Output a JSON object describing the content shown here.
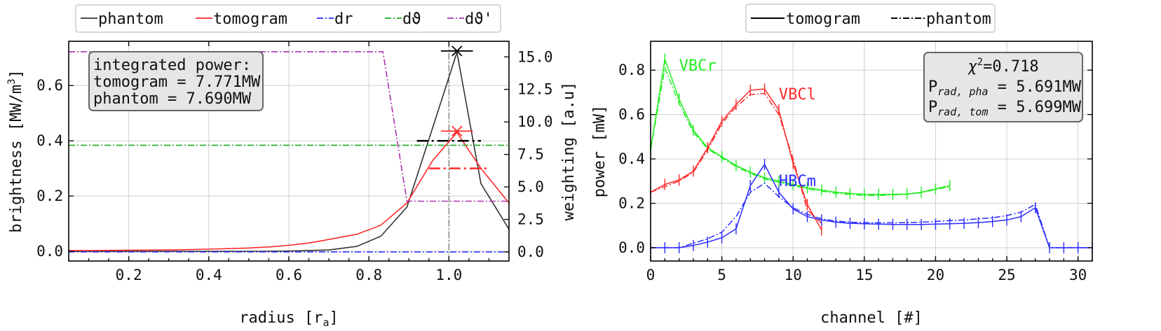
{
  "chart_data": [
    {
      "type": "line",
      "xlabel": "radius [r",
      "xlabel_sub": "a",
      "xlabel_end": "]",
      "ylabel": "brightness [MW/m",
      "ylabel_sup": "3",
      "ylabel_end": "]",
      "y2label": "weighting [a.u]",
      "xlim": [
        0.05,
        1.15
      ],
      "ylim": [
        -0.035,
        0.76
      ],
      "y2lim": [
        -0.7,
        16.2
      ],
      "xticks": [
        "0.2",
        "0.4",
        "0.6",
        "0.8",
        "1.0"
      ],
      "xtick_values": [
        0.2,
        0.4,
        0.6,
        0.8,
        1.0
      ],
      "yticks": [
        "0.0",
        "0.2",
        "0.4",
        "0.6"
      ],
      "ytick_values": [
        0.0,
        0.2,
        0.4,
        0.6
      ],
      "y2ticks": [
        "0.0",
        "2.5",
        "5.0",
        "7.5",
        "10.0",
        "12.5",
        "15.0"
      ],
      "y2tick_values": [
        0.0,
        2.5,
        5.0,
        7.5,
        10.0,
        12.5,
        15.0
      ],
      "grid": true,
      "legend": {
        "placement": "top, outside",
        "entries": [
          {
            "label": "phantom",
            "color": "#333333",
            "dash": "solid"
          },
          {
            "label": "tomogram",
            "color": "#ff2a2a",
            "dash": "solid"
          },
          {
            "label": "dr",
            "color": "#2a2aff",
            "dash": "dashdot"
          },
          {
            "label": "dϑ",
            "color": "#22aa22",
            "dash": "dashdot"
          },
          {
            "label": "dϑ'",
            "color": "#aa33aa",
            "dash": "dashdot"
          }
        ]
      },
      "annotation": {
        "lines": [
          "integrated power:",
          "tomogram = 7.771MW",
          "phantom = 7.690MW"
        ]
      },
      "series": [
        {
          "name": "phantom",
          "color": "#333333",
          "dash": "solid",
          "axis": "left",
          "x": [
            0.05,
            0.1,
            0.2,
            0.3,
            0.4,
            0.5,
            0.6,
            0.7,
            0.77,
            0.83,
            0.895,
            0.96,
            1.02,
            1.08,
            1.15
          ],
          "y": [
            0.0,
            0.0,
            0.0,
            0.0,
            0.0,
            0.0,
            0.001,
            0.005,
            0.018,
            0.055,
            0.16,
            0.45,
            0.72,
            0.245,
            0.08
          ]
        },
        {
          "name": "tomogram",
          "color": "#ff2a2a",
          "dash": "solid",
          "axis": "left",
          "x": [
            0.05,
            0.1,
            0.2,
            0.3,
            0.4,
            0.5,
            0.55,
            0.6,
            0.65,
            0.7,
            0.77,
            0.83,
            0.895,
            0.96,
            1.02,
            1.08,
            1.15
          ],
          "y": [
            0.003,
            0.003,
            0.004,
            0.005,
            0.008,
            0.012,
            0.016,
            0.022,
            0.03,
            0.043,
            0.062,
            0.095,
            0.175,
            0.33,
            0.43,
            0.3,
            0.175
          ]
        },
        {
          "name": "dr",
          "color": "#2a2aff",
          "dash": "dashdot",
          "axis": "right",
          "x": [
            0.05,
            1.15
          ],
          "y": [
            0.0,
            0.0
          ]
        },
        {
          "name": "dϑ",
          "color": "#22aa22",
          "dash": "dashdot",
          "axis": "right",
          "x": [
            0.05,
            1.15
          ],
          "y": [
            8.2,
            8.2
          ]
        },
        {
          "name": "dϑ'",
          "color": "#aa33aa",
          "dash": "dashdot",
          "axis": "right",
          "x": [
            0.05,
            0.835,
            0.895,
            1.15
          ],
          "y": [
            15.4,
            15.4,
            3.9,
            3.9
          ]
        }
      ],
      "markers": [
        {
          "series": "phantom",
          "x": 1.02,
          "y": 0.725,
          "color": "#000000",
          "hbar": [
            0.98,
            1.06
          ]
        },
        {
          "series": "tomogram",
          "x": 1.02,
          "y": 0.435,
          "color": "#ff2a2a",
          "hbar": [
            0.98,
            1.06
          ]
        }
      ],
      "hbars": [
        {
          "series": "phantom",
          "y": 0.4,
          "x": [
            0.92,
            1.08
          ],
          "color": "#000000"
        },
        {
          "series": "tomogram",
          "y": 0.3,
          "x": [
            0.95,
            1.1
          ],
          "color": "#ff2a2a"
        }
      ],
      "vline": {
        "x": 1.0,
        "color": "#777777",
        "dash": "dashdot"
      }
    },
    {
      "type": "line",
      "xlabel": "channel [#]",
      "ylabel": "power [mW]",
      "xlim": [
        0,
        31
      ],
      "ylim": [
        -0.06,
        0.93
      ],
      "xticks": [
        "0",
        "5",
        "10",
        "15",
        "20",
        "25",
        "30"
      ],
      "xtick_values": [
        0,
        5,
        10,
        15,
        20,
        25,
        30
      ],
      "yticks": [
        "0.0",
        "0.2",
        "0.4",
        "0.6",
        "0.8"
      ],
      "ytick_values": [
        0.0,
        0.2,
        0.4,
        0.6,
        0.8
      ],
      "grid": true,
      "legend": {
        "placement": "top, outside",
        "entries": [
          {
            "label": "tomogram",
            "color": "#000000",
            "dash": "solid"
          },
          {
            "label": "phantom",
            "color": "#000000",
            "dash": "dashdot"
          }
        ]
      },
      "annotation": {
        "chi_symbol": "χ",
        "chi_sup": "2",
        "chi_value": "=0.718",
        "p_main": "P",
        "pha_sub": "rad, pha",
        "pha_value": " = 5.691MW",
        "tom_sub": "rad, tom",
        "tom_value": " = 5.699MW"
      },
      "labels": [
        {
          "text": "VBCr",
          "color": "#22ee22",
          "x": 2.0,
          "y": 0.82
        },
        {
          "text": "VBCl",
          "color": "#ff2a2a",
          "x": 9.0,
          "y": 0.69
        },
        {
          "text": "HBCm",
          "color": "#2a2aff",
          "x": 9.0,
          "y": 0.3
        }
      ],
      "series": [
        {
          "name": "VBCr",
          "variant": "tomogram",
          "color": "#22ee22",
          "dash": "solid",
          "x": [
            0,
            1,
            2,
            3,
            4,
            5,
            6,
            7,
            8,
            9,
            10,
            11,
            12,
            13,
            14,
            15,
            16,
            17,
            18,
            19,
            20,
            21
          ],
          "y": [
            0.44,
            0.85,
            0.67,
            0.53,
            0.45,
            0.41,
            0.37,
            0.34,
            0.315,
            0.3,
            0.285,
            0.27,
            0.26,
            0.25,
            0.245,
            0.24,
            0.24,
            0.24,
            0.242,
            0.25,
            0.265,
            0.28
          ]
        },
        {
          "name": "VBCr",
          "variant": "phantom",
          "color": "#22ee22",
          "dash": "dashdot",
          "x": [
            0,
            1,
            2,
            3,
            4,
            5,
            6,
            7,
            8,
            9,
            10,
            11,
            12,
            13,
            14,
            15,
            16,
            17,
            18,
            19,
            20,
            21
          ],
          "y": [
            0.44,
            0.81,
            0.65,
            0.52,
            0.445,
            0.405,
            0.365,
            0.335,
            0.31,
            0.295,
            0.28,
            0.265,
            0.255,
            0.245,
            0.24,
            0.235,
            0.235,
            0.238,
            0.24,
            0.248,
            0.262,
            0.275
          ]
        },
        {
          "name": "VBCl",
          "variant": "tomogram",
          "color": "#ff2a2a",
          "dash": "solid",
          "x": [
            0,
            1,
            2,
            3,
            4,
            5,
            6,
            7,
            8,
            9,
            10,
            11,
            12
          ],
          "y": [
            0.25,
            0.285,
            0.305,
            0.345,
            0.45,
            0.57,
            0.645,
            0.71,
            0.715,
            0.62,
            0.38,
            0.195,
            0.08
          ]
        },
        {
          "name": "VBCl",
          "variant": "phantom",
          "color": "#ff2a2a",
          "dash": "dashdot",
          "x": [
            0,
            1,
            2,
            3,
            4,
            5,
            6,
            7,
            8,
            9,
            10,
            11,
            12
          ],
          "y": [
            0.25,
            0.275,
            0.3,
            0.34,
            0.44,
            0.56,
            0.635,
            0.69,
            0.695,
            0.6,
            0.4,
            0.17,
            0.11
          ]
        },
        {
          "name": "HBCm",
          "variant": "tomogram",
          "color": "#2a2aff",
          "dash": "solid",
          "x": [
            0,
            1,
            2,
            3,
            4,
            5,
            6,
            7,
            8,
            9,
            10,
            11,
            12,
            13,
            14,
            15,
            16,
            17,
            18,
            19,
            20,
            21,
            22,
            23,
            24,
            25,
            26,
            27,
            28,
            29,
            30,
            31
          ],
          "y": [
            0.0,
            0.0,
            0.0,
            0.01,
            0.025,
            0.045,
            0.085,
            0.28,
            0.375,
            0.25,
            0.175,
            0.14,
            0.125,
            0.115,
            0.11,
            0.108,
            0.106,
            0.105,
            0.105,
            0.105,
            0.106,
            0.108,
            0.11,
            0.113,
            0.118,
            0.125,
            0.14,
            0.18,
            0.0,
            0.0,
            0.0,
            0.0
          ]
        },
        {
          "name": "HBCm",
          "variant": "phantom",
          "color": "#2a2aff",
          "dash": "dashdot",
          "x": [
            0,
            1,
            2,
            3,
            4,
            5,
            6,
            7,
            8,
            9,
            10,
            11,
            12,
            13,
            14,
            15,
            16,
            17,
            18,
            19,
            20,
            21,
            22,
            23,
            24,
            25,
            26,
            27,
            28,
            29,
            30,
            31
          ],
          "y": [
            0.0,
            0.0,
            0.0,
            0.02,
            0.04,
            0.07,
            0.14,
            0.25,
            0.29,
            0.23,
            0.18,
            0.15,
            0.13,
            0.12,
            0.115,
            0.113,
            0.112,
            0.112,
            0.113,
            0.115,
            0.118,
            0.122,
            0.125,
            0.13,
            0.135,
            0.145,
            0.16,
            0.195,
            0.0,
            0.0,
            0.0,
            0.0
          ]
        }
      ]
    }
  ]
}
